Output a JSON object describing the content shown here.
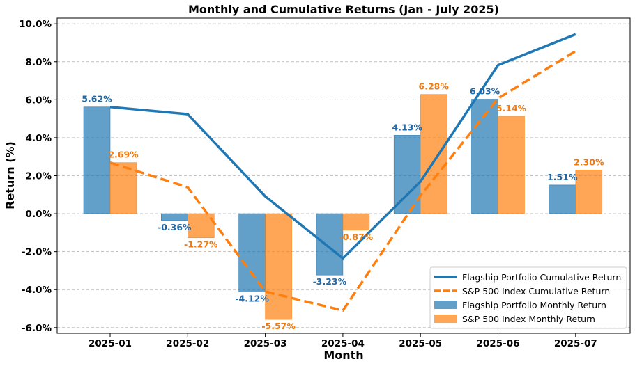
{
  "chart_data": {
    "type": "bar",
    "title": "Monthly and Cumulative Returns (Jan - July 2025)",
    "xlabel": "Month",
    "ylabel": "Return (%)",
    "categories": [
      "2025-01",
      "2025-02",
      "2025-03",
      "2025-04",
      "2025-05",
      "2025-06",
      "2025-07"
    ],
    "ylim": [
      -6.3,
      10.3
    ],
    "yticks": [
      -6,
      -4,
      -2,
      0,
      2,
      4,
      6,
      8,
      10
    ],
    "ytick_labels": [
      "-6.0%",
      "-4.0%",
      "-2.0%",
      "0.0%",
      "2.0%",
      "4.0%",
      "6.0%",
      "8.0%",
      "10.0%"
    ],
    "grid": "horizontal dashed",
    "legend_position": "bottom-right",
    "bar_series": [
      {
        "name": "Flagship Portfolio Monthly Return",
        "color": "#1f77b4",
        "values": [
          5.62,
          -0.36,
          -4.12,
          -3.23,
          4.13,
          6.03,
          1.51
        ],
        "labels": [
          "5.62%",
          "-0.36%",
          "-4.12%",
          "-3.23%",
          "4.13%",
          "6.03%",
          "1.51%"
        ]
      },
      {
        "name": "S&P 500 Index Monthly Return",
        "color": "#ff7f0e",
        "values": [
          2.69,
          -1.27,
          -5.57,
          -0.87,
          6.28,
          5.14,
          2.3
        ],
        "labels": [
          "2.69%",
          "-1.27%",
          "-5.57%",
          "-0.87%",
          "6.28%",
          "5.14%",
          "2.30%"
        ]
      }
    ],
    "line_series": [
      {
        "name": "Flagship Portfolio Cumulative Return",
        "color": "#1f77b4",
        "style": "solid",
        "values": [
          5.62,
          5.24,
          0.91,
          -2.35,
          1.69,
          7.82,
          9.45
        ]
      },
      {
        "name": "S&P 500 Index Cumulative Return",
        "color": "#ff7f0e",
        "style": "dashed",
        "values": [
          2.69,
          1.39,
          -4.1,
          -5.1,
          0.95,
          6.07,
          8.56
        ]
      }
    ],
    "legend_order": [
      "Flagship Portfolio Cumulative Return",
      "S&P 500 Index Cumulative Return",
      "Flagship Portfolio Monthly Return",
      "S&P 500 Index Monthly Return"
    ]
  }
}
